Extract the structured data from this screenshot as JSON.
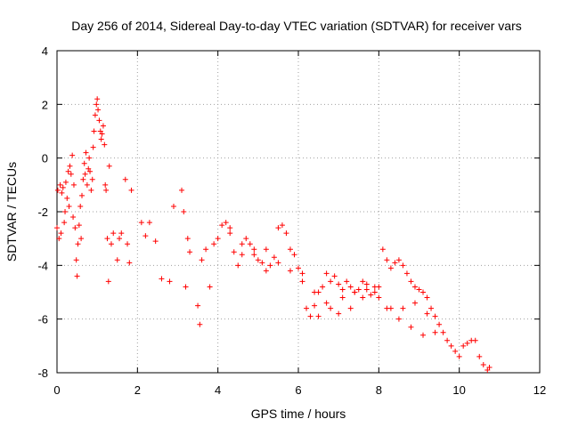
{
  "chart_data": {
    "type": "scatter",
    "title": "Day 256 of 2014, Sidereal Day-to-day VTEC variation (SDTVAR) for receiver vars",
    "xlabel": "GPS time / hours",
    "ylabel": "SDTVAR / TECUs",
    "xlim": [
      0,
      12
    ],
    "ylim": [
      -8,
      4
    ],
    "xticks": [
      0,
      2,
      4,
      6,
      8,
      10,
      12
    ],
    "yticks": [
      -8,
      -6,
      -4,
      -2,
      0,
      2,
      4
    ],
    "grid": true,
    "marker": "plus",
    "colors": {
      "series": "#ff0000",
      "grid": "#a0a0a0",
      "axis": "#000000"
    },
    "series": [
      {
        "name": "SDTVAR",
        "x": [
          0.0,
          0.02,
          0.05,
          0.08,
          0.1,
          0.12,
          0.15,
          0.18,
          0.2,
          0.22,
          0.25,
          0.28,
          0.3,
          0.32,
          0.35,
          0.38,
          0.4,
          0.42,
          0.45,
          0.48,
          0.5,
          0.52,
          0.55,
          0.58,
          0.6,
          0.62,
          0.65,
          0.68,
          0.7,
          0.72,
          0.75,
          0.78,
          0.8,
          0.82,
          0.85,
          0.88,
          0.9,
          0.92,
          0.95,
          0.98,
          1.0,
          1.02,
          1.05,
          1.08,
          1.1,
          1.12,
          1.15,
          1.18,
          1.2,
          1.22,
          1.25,
          1.28,
          1.3,
          1.35,
          1.4,
          1.5,
          1.55,
          1.6,
          1.7,
          1.75,
          1.8,
          1.85,
          2.1,
          2.2,
          2.3,
          2.45,
          2.6,
          2.8,
          2.9,
          3.1,
          3.15,
          3.2,
          3.25,
          3.3,
          3.5,
          3.55,
          3.6,
          3.7,
          3.8,
          3.9,
          4.0,
          4.1,
          4.2,
          4.3,
          4.4,
          4.5,
          4.6,
          4.7,
          4.8,
          4.9,
          5.0,
          5.1,
          5.2,
          5.3,
          5.4,
          5.5,
          5.6,
          5.7,
          5.8,
          5.9,
          6.0,
          6.1,
          6.2,
          6.3,
          6.4,
          6.5,
          6.6,
          6.7,
          6.8,
          6.9,
          7.0,
          7.1,
          7.2,
          7.3,
          7.4,
          7.5,
          7.6,
          7.7,
          7.8,
          7.9,
          8.0,
          8.1,
          8.2,
          8.3,
          8.4,
          8.5,
          8.6,
          8.7,
          8.8,
          8.9,
          9.0,
          9.1,
          9.2,
          9.3,
          9.4,
          9.5,
          9.6,
          9.7,
          9.8,
          9.9,
          10.0,
          10.1,
          10.2,
          10.3,
          10.4,
          10.5,
          10.6,
          10.7,
          10.75,
          4.3,
          4.6,
          4.9,
          5.2,
          5.5,
          5.8,
          6.1,
          6.4,
          6.7,
          7.0,
          7.3,
          7.6,
          7.9,
          8.2,
          8.5,
          8.8,
          9.1,
          9.4,
          6.5,
          6.8,
          7.1,
          7.4,
          7.7,
          8.0,
          8.3,
          8.6,
          8.9,
          9.2
        ],
        "y": [
          -2.6,
          -1.2,
          -3.0,
          -1.0,
          -2.8,
          -1.3,
          -1.1,
          -2.4,
          -2.0,
          -0.9,
          -1.5,
          -0.5,
          -1.8,
          -0.3,
          -0.6,
          0.1,
          -2.2,
          -1.0,
          -2.6,
          -3.8,
          -4.4,
          -3.2,
          -2.5,
          -1.8,
          -3.0,
          -1.4,
          -0.8,
          -0.2,
          -0.6,
          0.2,
          -1.0,
          -0.4,
          0.0,
          -0.5,
          -1.2,
          -0.8,
          0.4,
          1.0,
          1.6,
          2.0,
          2.2,
          1.8,
          1.4,
          1.0,
          0.7,
          0.9,
          1.2,
          0.5,
          -1.0,
          -1.2,
          -3.0,
          -4.6,
          -0.3,
          -3.2,
          -2.8,
          -3.8,
          -3.0,
          -2.8,
          -0.8,
          -3.2,
          -3.9,
          -1.2,
          -2.4,
          -2.9,
          -2.4,
          -3.1,
          -4.5,
          -4.6,
          -1.8,
          -1.2,
          -2.0,
          -4.8,
          -3.0,
          -3.5,
          -5.5,
          -6.2,
          -3.8,
          -3.4,
          -4.8,
          -3.2,
          -3.0,
          -2.5,
          -2.4,
          -2.8,
          -3.5,
          -4.0,
          -3.6,
          -3.0,
          -3.2,
          -3.4,
          -3.8,
          -3.9,
          -4.2,
          -4.0,
          -3.7,
          -2.6,
          -2.5,
          -2.8,
          -3.4,
          -3.6,
          -4.1,
          -4.3,
          -5.6,
          -5.9,
          -5.5,
          -5.0,
          -4.8,
          -4.3,
          -4.6,
          -4.4,
          -4.7,
          -4.9,
          -4.6,
          -4.8,
          -5.0,
          -4.9,
          -4.6,
          -4.7,
          -5.1,
          -4.8,
          -4.8,
          -3.4,
          -3.8,
          -4.1,
          -3.9,
          -3.8,
          -4.0,
          -4.3,
          -4.6,
          -4.8,
          -4.9,
          -5.0,
          -5.2,
          -5.6,
          -5.9,
          -6.2,
          -6.5,
          -6.8,
          -7.0,
          -7.2,
          -7.4,
          -7.0,
          -6.9,
          -6.8,
          -6.8,
          -7.4,
          -7.7,
          -7.9,
          -7.8,
          -2.6,
          -3.2,
          -3.6,
          -3.4,
          -3.9,
          -4.2,
          -4.6,
          -5.0,
          -5.4,
          -5.8,
          -5.6,
          -5.2,
          -5.0,
          -5.6,
          -6.0,
          -6.3,
          -6.6,
          -6.5,
          -5.9,
          -5.6,
          -5.2,
          -5.0,
          -4.9,
          -5.2,
          -5.6,
          -5.6,
          -5.4,
          -5.8
        ]
      }
    ]
  }
}
